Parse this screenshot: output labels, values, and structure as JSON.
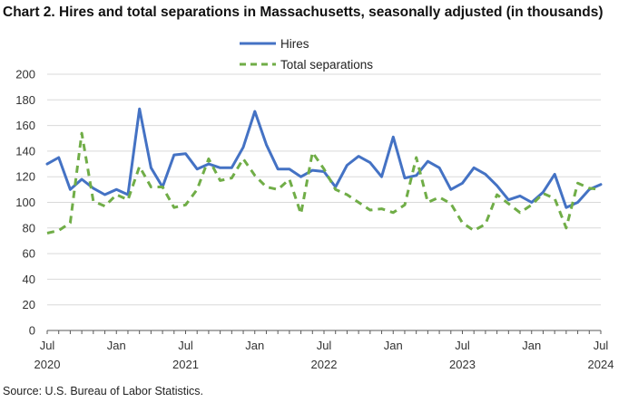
{
  "title": "Chart 2. Hires and total separations in Massachusetts, seasonally adjusted (in thousands)",
  "source": "Source: U.S. Bureau of Labor Statistics.",
  "colors": {
    "hires": "#4472C4",
    "separations": "#70AD47",
    "grid": "#d9d9d9"
  },
  "chart_data": {
    "type": "line",
    "title": "Chart 2. Hires and total separations in Massachusetts, seasonally adjusted (in thousands)",
    "xlabel": "",
    "ylabel": "",
    "ylim": [
      0,
      200
    ],
    "yticks": [
      0,
      20,
      40,
      60,
      80,
      100,
      120,
      140,
      160,
      180,
      200
    ],
    "grid": true,
    "legend_position": "top-center",
    "x": [
      "2020-07",
      "2020-08",
      "2020-09",
      "2020-10",
      "2020-11",
      "2020-12",
      "2021-01",
      "2021-02",
      "2021-03",
      "2021-04",
      "2021-05",
      "2021-06",
      "2021-07",
      "2021-08",
      "2021-09",
      "2021-10",
      "2021-11",
      "2021-12",
      "2022-01",
      "2022-02",
      "2022-03",
      "2022-04",
      "2022-05",
      "2022-06",
      "2022-07",
      "2022-08",
      "2022-09",
      "2022-10",
      "2022-11",
      "2022-12",
      "2023-01",
      "2023-02",
      "2023-03",
      "2023-04",
      "2023-05",
      "2023-06",
      "2023-07",
      "2023-08",
      "2023-09",
      "2023-10",
      "2023-11",
      "2023-12",
      "2024-01",
      "2024-02",
      "2024-03",
      "2024-04",
      "2024-05",
      "2024-06",
      "2024-07"
    ],
    "xtick_labels": [
      {
        "month": "Jul",
        "year": "2020",
        "index": 0
      },
      {
        "month": "Jan",
        "year": "",
        "index": 6
      },
      {
        "month": "Jul",
        "year": "2021",
        "index": 12
      },
      {
        "month": "Jan",
        "year": "",
        "index": 18
      },
      {
        "month": "Jul",
        "year": "2022",
        "index": 24
      },
      {
        "month": "Jan",
        "year": "",
        "index": 30
      },
      {
        "month": "Jul",
        "year": "2023",
        "index": 36
      },
      {
        "month": "Jan",
        "year": "",
        "index": 42
      },
      {
        "month": "Jul",
        "year": "2024",
        "index": 48
      }
    ],
    "series": [
      {
        "name": "Hires",
        "style": "solid",
        "values": [
          130,
          135,
          110,
          118,
          111,
          106,
          110,
          106,
          173,
          127,
          112,
          137,
          138,
          126,
          130,
          127,
          127,
          143,
          171,
          145,
          126,
          126,
          120,
          125,
          124,
          112,
          129,
          136,
          131,
          120,
          151,
          119,
          121,
          132,
          127,
          110,
          115,
          127,
          122,
          113,
          102,
          105,
          100,
          108,
          122,
          96,
          100,
          110,
          114
        ]
      },
      {
        "name": "Total separations",
        "style": "dashed",
        "values": [
          76,
          78,
          84,
          154,
          101,
          97,
          106,
          102,
          128,
          112,
          112,
          96,
          98,
          110,
          134,
          117,
          119,
          134,
          121,
          112,
          110,
          118,
          91,
          139,
          126,
          110,
          106,
          100,
          94,
          95,
          92,
          98,
          135,
          100,
          104,
          99,
          84,
          78,
          83,
          106,
          99,
          92,
          98,
          107,
          103,
          80,
          115,
          111,
          110
        ]
      }
    ]
  }
}
